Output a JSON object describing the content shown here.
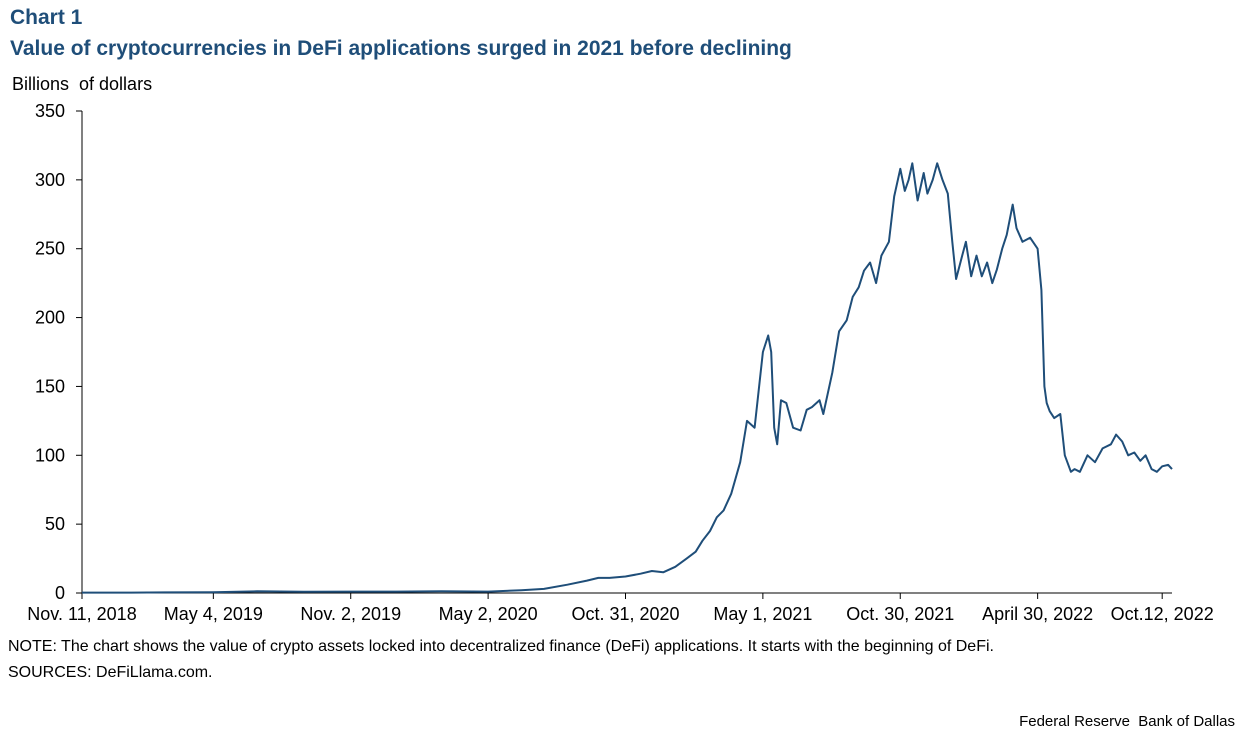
{
  "header": {
    "chart_label": "Chart 1",
    "title": "Value of cryptocurrencies in DeFi applications surged in 2021 before declining",
    "y_unit": "Billions  of dollars"
  },
  "footer": {
    "note": "NOTE: The chart shows the value of crypto assets locked into decentralized finance (DeFi) applications. It starts with the beginning of DeFi.",
    "sources": "SOURCES:  DeFiLlama.com.",
    "credit": "Federal Reserve  Bank of Dallas"
  },
  "chart_data": {
    "type": "line",
    "title": "Value of cryptocurrencies in DeFi applications surged in 2021 before declining",
    "ylabel": "Billions  of dollars",
    "xlabel": "",
    "ylim": [
      0,
      350
    ],
    "y_ticks": [
      0,
      50,
      100,
      150,
      200,
      250,
      300,
      350
    ],
    "x_range": [
      "2018-11-11",
      "2022-10-25"
    ],
    "x_ticks": [
      {
        "date": "2018-11-11",
        "label": "Nov. 11, 2018"
      },
      {
        "date": "2019-05-04",
        "label": "May 4, 2019"
      },
      {
        "date": "2019-11-02",
        "label": "Nov. 2, 2019"
      },
      {
        "date": "2020-05-02",
        "label": "May 2, 2020"
      },
      {
        "date": "2020-10-31",
        "label": "Oct. 31, 2020"
      },
      {
        "date": "2021-05-01",
        "label": "May 1, 2021"
      },
      {
        "date": "2021-10-30",
        "label": "Oct. 30, 2021"
      },
      {
        "date": "2022-04-30",
        "label": "April 30, 2022"
      },
      {
        "date": "2022-10-12",
        "label": "Oct.12, 2022"
      }
    ],
    "grid": false,
    "line_color": "#1f4e79",
    "series": [
      {
        "x": [
          "2018-11-11",
          "2019-01-15",
          "2019-03-01",
          "2019-05-04",
          "2019-07-01",
          "2019-09-01",
          "2019-11-02",
          "2020-01-01",
          "2020-03-01",
          "2020-05-02",
          "2020-06-15",
          "2020-07-15",
          "2020-08-15",
          "2020-09-10",
          "2020-09-25",
          "2020-10-10",
          "2020-10-31",
          "2020-11-20",
          "2020-12-05",
          "2020-12-20",
          "2021-01-05",
          "2021-01-20",
          "2021-02-01",
          "2021-02-10",
          "2021-02-20",
          "2021-03-01",
          "2021-03-10",
          "2021-03-20",
          "2021-04-01",
          "2021-04-10",
          "2021-04-20",
          "2021-05-01",
          "2021-05-08",
          "2021-05-12",
          "2021-05-16",
          "2021-05-20",
          "2021-05-25",
          "2021-06-01",
          "2021-06-10",
          "2021-06-20",
          "2021-06-28",
          "2021-07-05",
          "2021-07-15",
          "2021-07-20",
          "2021-08-01",
          "2021-08-10",
          "2021-08-20",
          "2021-08-28",
          "2021-09-05",
          "2021-09-12",
          "2021-09-20",
          "2021-09-28",
          "2021-10-05",
          "2021-10-15",
          "2021-10-22",
          "2021-10-30",
          "2021-11-05",
          "2021-11-10",
          "2021-11-15",
          "2021-11-22",
          "2021-11-30",
          "2021-12-05",
          "2021-12-12",
          "2021-12-18",
          "2021-12-25",
          "2022-01-01",
          "2022-01-07",
          "2022-01-12",
          "2022-01-20",
          "2022-01-25",
          "2022-02-01",
          "2022-02-08",
          "2022-02-15",
          "2022-02-22",
          "2022-03-01",
          "2022-03-07",
          "2022-03-14",
          "2022-03-20",
          "2022-03-28",
          "2022-04-02",
          "2022-04-10",
          "2022-04-20",
          "2022-04-30",
          "2022-05-05",
          "2022-05-09",
          "2022-05-12",
          "2022-05-16",
          "2022-05-22",
          "2022-05-30",
          "2022-06-05",
          "2022-06-13",
          "2022-06-18",
          "2022-06-25",
          "2022-07-05",
          "2022-07-15",
          "2022-07-25",
          "2022-08-05",
          "2022-08-12",
          "2022-08-20",
          "2022-08-28",
          "2022-09-05",
          "2022-09-13",
          "2022-09-20",
          "2022-09-28",
          "2022-10-05",
          "2022-10-12",
          "2022-10-20",
          "2022-10-25"
        ],
        "y": [
          0.3,
          0.3,
          0.4,
          0.6,
          1.2,
          0.9,
          1,
          1,
          1.2,
          1,
          2,
          3,
          6,
          9,
          11,
          11,
          12,
          14,
          16,
          15,
          19,
          25,
          30,
          38,
          45,
          55,
          60,
          72,
          95,
          125,
          120,
          175,
          187,
          175,
          120,
          108,
          140,
          138,
          120,
          118,
          133,
          135,
          140,
          130,
          160,
          190,
          198,
          215,
          222,
          234,
          240,
          225,
          245,
          255,
          288,
          308,
          292,
          300,
          312,
          285,
          305,
          290,
          300,
          312,
          300,
          290,
          255,
          228,
          245,
          255,
          230,
          245,
          230,
          240,
          225,
          235,
          250,
          260,
          282,
          265,
          255,
          258,
          250,
          220,
          150,
          138,
          132,
          127,
          130,
          100,
          88,
          90,
          88,
          100,
          95,
          105,
          108,
          115,
          110,
          100,
          102,
          96,
          100,
          90,
          88,
          92,
          93,
          90
        ]
      }
    ]
  }
}
